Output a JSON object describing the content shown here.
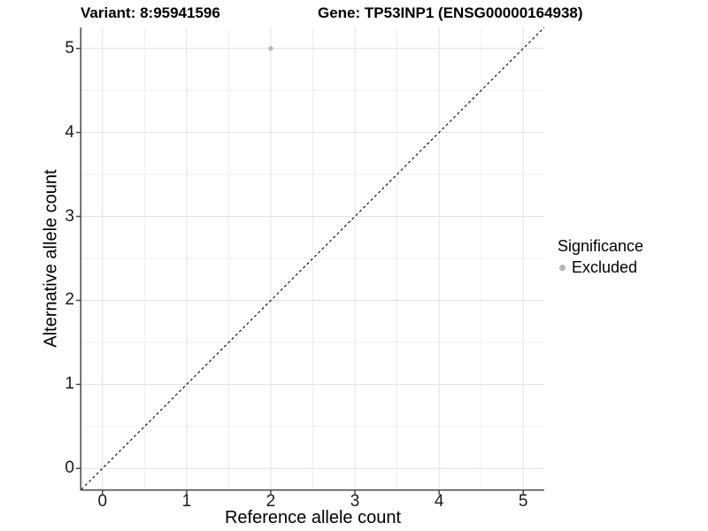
{
  "header": {
    "title_left": "Variant: 8:95941596",
    "title_right": "Gene: TP53INP1 (ENSG00000164938)"
  },
  "legend": {
    "title": "Significance",
    "items": [
      {
        "label": "Excluded",
        "color": "#b5b5b5"
      }
    ]
  },
  "chart_data": {
    "type": "scatter",
    "title": "Variant: 8:95941596   Gene: TP53INP1 (ENSG00000164938)",
    "xlabel": "Reference allele count",
    "ylabel": "Alternative allele count",
    "xlim": [
      -0.25,
      5.25
    ],
    "ylim": [
      -0.25,
      5.25
    ],
    "x_ticks": [
      0,
      1,
      2,
      3,
      4,
      5
    ],
    "y_ticks": [
      0,
      1,
      2,
      3,
      4,
      5
    ],
    "grid": true,
    "legend_position": "right",
    "series": [
      {
        "name": "Excluded",
        "color": "#b5b5b5",
        "points": [
          {
            "x": 2,
            "y": 5
          }
        ]
      }
    ],
    "reference_line": {
      "type": "abline",
      "intercept": 0,
      "slope": 1,
      "style": "dashed",
      "color": "#000000"
    }
  },
  "colors": {
    "background": "#ffffff",
    "grid_major": "#e2e2e2",
    "grid_minor": "#efefef",
    "axis_line": "#4a4a4a",
    "tick_mark": "#4a4a4a"
  }
}
